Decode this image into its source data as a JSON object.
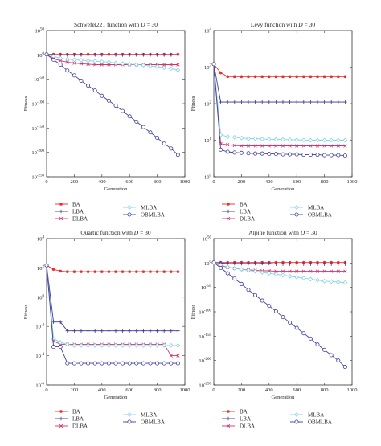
{
  "figure": {
    "legend_labels": [
      "BA",
      "LBA",
      "DLBA",
      "MLBA",
      "OBMLBA"
    ]
  },
  "series_styles": {
    "BA": {
      "color": "#ee2c2c",
      "marker": "star"
    },
    "LBA": {
      "color": "#3a3a9a",
      "marker": "plus"
    },
    "DLBA": {
      "color": "#d6336c",
      "marker": "cross"
    },
    "MLBA": {
      "color": "#7fd3e6",
      "marker": "diamond"
    },
    "OBMLBA": {
      "color": "#3f3fa0",
      "marker": "circle"
    }
  },
  "chart_data": [
    {
      "type": "line",
      "title_prefix": "Schwefel221 function with ",
      "title_var": "D",
      "title_suffix": " = 30",
      "xlabel": "Generation",
      "ylabel": "Fitness",
      "xlim": [
        0,
        1000
      ],
      "xticks": [
        0,
        200,
        400,
        600,
        800,
        1000
      ],
      "yscale": "log",
      "ylim_exp": [
        -250,
        50
      ],
      "yticks_exp": [
        50,
        0,
        -50,
        -100,
        -150,
        -200,
        -250
      ],
      "x": [
        0,
        50,
        100,
        150,
        200,
        250,
        300,
        350,
        400,
        450,
        500,
        550,
        600,
        650,
        700,
        750,
        800,
        850,
        900,
        950
      ],
      "series": [
        {
          "name": "BA",
          "y_exp": [
            1,
            1,
            1,
            1,
            1,
            1,
            1,
            1,
            1,
            1,
            1,
            1,
            1,
            1,
            1,
            1,
            1,
            1,
            1,
            1
          ]
        },
        {
          "name": "LBA",
          "y_exp": [
            1,
            0,
            0,
            0,
            0,
            0,
            0,
            0,
            0,
            0,
            0,
            0,
            0,
            0,
            0,
            0,
            0,
            0,
            0,
            0
          ]
        },
        {
          "name": "DLBA",
          "y_exp": [
            1,
            -8,
            -12,
            -15,
            -17,
            -18,
            -19,
            -20,
            -20,
            -20,
            -20,
            -20,
            -20,
            -20,
            -20,
            -20,
            -20,
            -20,
            -20,
            -20
          ]
        },
        {
          "name": "MLBA",
          "y_exp": [
            1,
            -3,
            -7,
            -9,
            -10,
            -11,
            -12,
            -13,
            -14,
            -15,
            -17,
            -18,
            -19,
            -20,
            -21,
            -23,
            -24,
            -26,
            -28,
            -31
          ]
        },
        {
          "name": "OBMLBA",
          "y_exp": [
            1,
            -10,
            -20,
            -32,
            -42,
            -53,
            -63,
            -73,
            -84,
            -94,
            -104,
            -115,
            -126,
            -137,
            -148,
            -159,
            -170,
            -182,
            -192,
            -205
          ]
        }
      ]
    },
    {
      "type": "line",
      "title_prefix": "Levy function with ",
      "title_var": "D",
      "title_suffix": " = 30",
      "xlabel": "Generation",
      "ylabel": "Fitness",
      "xlim": [
        0,
        1000
      ],
      "xticks": [
        0,
        200,
        400,
        600,
        800,
        1000
      ],
      "yscale": "log",
      "ylim_exp": [
        0,
        4
      ],
      "yticks_exp": [
        4,
        3,
        2,
        1,
        0
      ],
      "x": [
        0,
        50,
        100,
        150,
        200,
        250,
        300,
        350,
        400,
        450,
        500,
        550,
        600,
        650,
        700,
        750,
        800,
        850,
        900,
        950
      ],
      "series": [
        {
          "name": "BA",
          "values": [
            1200,
            700,
            550,
            550,
            550,
            550,
            550,
            550,
            550,
            550,
            550,
            550,
            550,
            550,
            550,
            550,
            550,
            550,
            550,
            550
          ]
        },
        {
          "name": "LBA",
          "values": [
            1200,
            110,
            110,
            110,
            110,
            110,
            110,
            110,
            110,
            110,
            110,
            110,
            110,
            110,
            110,
            110,
            110,
            110,
            110,
            110
          ]
        },
        {
          "name": "DLBA",
          "values": [
            1200,
            8,
            7.5,
            7.2,
            7,
            7,
            7,
            7,
            7,
            7,
            7,
            7,
            7,
            7,
            7,
            7,
            7,
            7,
            7,
            7
          ]
        },
        {
          "name": "MLBA",
          "values": [
            1200,
            14,
            12.5,
            12,
            11.5,
            11,
            11,
            10.8,
            10.6,
            10.5,
            10.4,
            10.3,
            10.2,
            10.1,
            10,
            10,
            10,
            10,
            10,
            10
          ]
        },
        {
          "name": "OBMLBA",
          "values": [
            1200,
            5.5,
            4.8,
            4.6,
            4.5,
            4.4,
            4.3,
            4.3,
            4.2,
            4.2,
            4.1,
            4.1,
            4.1,
            4,
            4,
            4,
            3.9,
            3.9,
            3.9,
            3.8
          ]
        }
      ]
    },
    {
      "type": "line",
      "title_prefix": "Quartic function with ",
      "title_var": "D",
      "title_suffix": " = 30",
      "xlabel": "Generation",
      "ylabel": "Fitness",
      "xlim": [
        0,
        1000
      ],
      "xticks": [
        0,
        200,
        400,
        600,
        800,
        1000
      ],
      "yscale": "log",
      "ylim_exp": [
        -6,
        4
      ],
      "yticks_exp": [
        4,
        2,
        0,
        -2,
        -4,
        -6
      ],
      "x": [
        0,
        50,
        100,
        150,
        200,
        250,
        300,
        350,
        400,
        450,
        500,
        550,
        600,
        650,
        700,
        750,
        800,
        850,
        900,
        950
      ],
      "series": [
        {
          "name": "BA",
          "values": [
            150,
            80,
            60,
            55,
            55,
            55,
            55,
            55,
            55,
            55,
            55,
            55,
            55,
            55,
            55,
            55,
            55,
            55,
            55,
            55
          ]
        },
        {
          "name": "LBA",
          "values": [
            150,
            0.02,
            0.02,
            0.005,
            0.005,
            0.005,
            0.005,
            0.005,
            0.005,
            0.005,
            0.005,
            0.005,
            0.005,
            0.005,
            0.005,
            0.005,
            0.005,
            0.005,
            0.005,
            0.005
          ]
        },
        {
          "name": "DLBA",
          "values": [
            150,
            0.001,
            0.0006,
            0.0006,
            0.0006,
            0.0006,
            0.0006,
            0.0006,
            0.0006,
            0.0006,
            0.0006,
            0.0006,
            0.0006,
            0.0006,
            0.0006,
            0.0006,
            0.0006,
            0.0006,
            0.0001,
            0.0001
          ]
        },
        {
          "name": "MLBA",
          "values": [
            150,
            0.0015,
            0.0008,
            0.0006,
            0.0005,
            0.0005,
            0.0005,
            0.0005,
            0.0005,
            0.0005,
            0.0005,
            0.0005,
            0.0005,
            0.0005,
            0.0005,
            0.0005,
            0.0005,
            0.0005,
            0.0005,
            0.0005
          ]
        },
        {
          "name": "OBMLBA",
          "values": [
            150,
            0.0004,
            0.0004,
            3e-05,
            3e-05,
            3e-05,
            3e-05,
            3e-05,
            3e-05,
            3e-05,
            3e-05,
            3e-05,
            3e-05,
            3e-05,
            3e-05,
            3e-05,
            3e-05,
            3e-05,
            3e-05,
            3e-05
          ]
        }
      ]
    },
    {
      "type": "line",
      "title_prefix": "Alpine function with ",
      "title_var": "D",
      "title_suffix": " = 30",
      "xlabel": "Generation",
      "ylabel": "Fitness",
      "xlim": [
        0,
        1000
      ],
      "xticks": [
        0,
        200,
        400,
        600,
        800,
        1000
      ],
      "yscale": "log",
      "ylim_exp": [
        -250,
        50
      ],
      "yticks_exp": [
        50,
        0,
        -50,
        -100,
        -150,
        -200,
        -250
      ],
      "x": [
        0,
        50,
        100,
        150,
        200,
        250,
        300,
        350,
        400,
        450,
        500,
        550,
        600,
        650,
        700,
        750,
        800,
        850,
        900,
        950
      ],
      "series": [
        {
          "name": "BA",
          "y_exp": [
            1,
            1,
            1,
            1,
            1,
            1,
            1,
            1,
            1,
            1,
            1,
            1,
            1,
            1,
            1,
            1,
            1,
            1,
            1,
            1
          ]
        },
        {
          "name": "LBA",
          "y_exp": [
            1,
            0,
            -1,
            -1,
            -1,
            -1,
            -1,
            -1,
            -1,
            -2,
            -2,
            -2,
            -2,
            -2,
            -2,
            -2,
            -2,
            -2,
            -2,
            -2
          ]
        },
        {
          "name": "DLBA",
          "y_exp": [
            1,
            -5,
            -9,
            -11,
            -13,
            -14,
            -15,
            -16,
            -16,
            -17,
            -17,
            -17,
            -17,
            -17,
            -17,
            -17,
            -17,
            -17,
            -17,
            -17
          ]
        },
        {
          "name": "MLBA",
          "y_exp": [
            1,
            -4,
            -8,
            -11,
            -13,
            -15,
            -17,
            -19,
            -21,
            -23,
            -25,
            -27,
            -29,
            -31,
            -33,
            -35,
            -37,
            -38,
            -39,
            -40
          ]
        },
        {
          "name": "OBMLBA",
          "y_exp": [
            1,
            -10,
            -21,
            -32,
            -43,
            -55,
            -66,
            -77,
            -88,
            -99,
            -111,
            -122,
            -133,
            -144,
            -155,
            -167,
            -178,
            -189,
            -200,
            -213
          ]
        }
      ]
    }
  ]
}
